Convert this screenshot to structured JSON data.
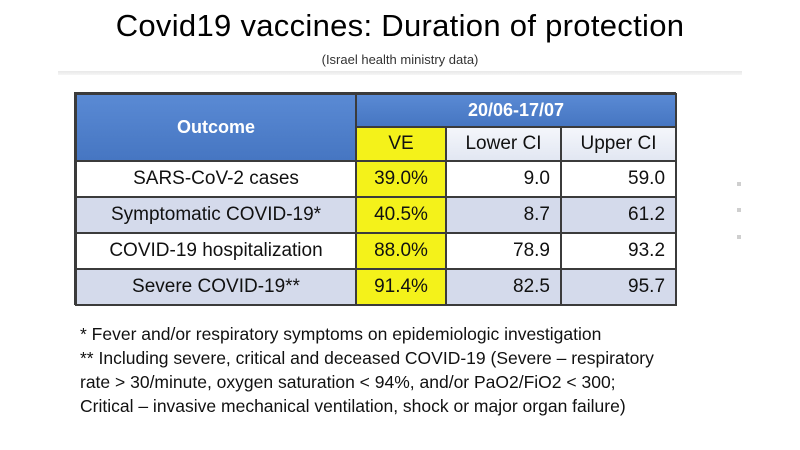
{
  "slide": {
    "title": "Covid19 vaccines: Duration of protection",
    "subtitle": "(Israel health ministry data)"
  },
  "table": {
    "outcome_header": "Outcome",
    "period_header": "20/06-17/07",
    "columns": [
      "VE",
      "Lower CI",
      "Upper CI"
    ],
    "rows": [
      {
        "outcome": "SARS-CoV-2 cases",
        "ve": "39.0%",
        "lower": "9.0",
        "upper": "59.0"
      },
      {
        "outcome": "Symptomatic COVID-19*",
        "ve": "40.5%",
        "lower": "8.7",
        "upper": "61.2"
      },
      {
        "outcome": "COVID-19 hospitalization",
        "ve": "88.0%",
        "lower": "78.9",
        "upper": "93.2"
      },
      {
        "outcome": "Severe COVID-19**",
        "ve": "91.4%",
        "lower": "82.5",
        "upper": "95.7"
      }
    ]
  },
  "notes": [
    "* Fever and/or respiratory symptoms on epidemiologic investigation",
    "** Including severe, critical and deceased COVID-19 (Severe – respiratory",
    "rate > 30/minute, oxygen saturation < 94%, and/or PaO2/FiO2 < 300;",
    "Critical – invasive mechanical ventilation, shock or major organ failure)"
  ],
  "colors": {
    "header_blue": "#4f7fc9",
    "ve_yellow": "#f4f21a",
    "row_band": "#d4daeb"
  }
}
